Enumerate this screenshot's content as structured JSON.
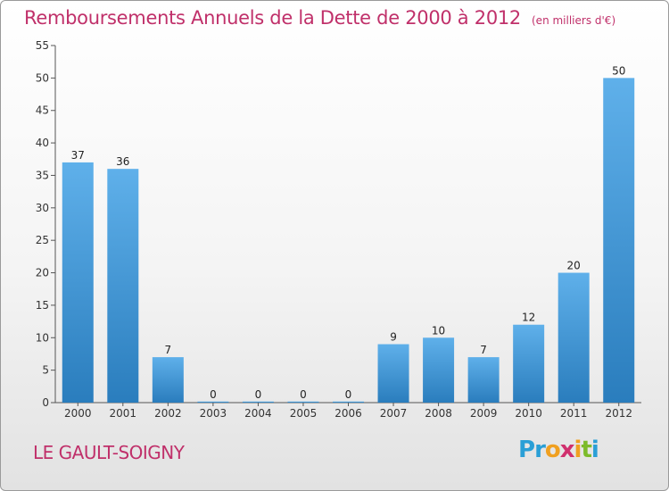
{
  "header": {
    "title": "Remboursements Annuels de la Dette de 2000 à 2012",
    "subtitle": "(en milliers d'€)"
  },
  "footer": {
    "commune": "LE GAULT-SOIGNY",
    "logo_text": "Proxiti",
    "logo_letters": [
      {
        "char": "P",
        "color": "#2a9fd6"
      },
      {
        "char": "r",
        "color": "#2a9fd6"
      },
      {
        "char": "o",
        "color": "#f0a020"
      },
      {
        "char": "x",
        "color": "#d0306e"
      },
      {
        "char": "i",
        "color": "#f0a020"
      },
      {
        "char": "t",
        "color": "#7cbb2a"
      },
      {
        "char": "i",
        "color": "#2a9fd6"
      }
    ]
  },
  "colors": {
    "bar_light": "#5fb0ea",
    "bar_dark": "#2a7dbd",
    "title": "#c0306a",
    "grid": "#cccccc"
  },
  "chart_data": {
    "type": "bar",
    "title": "Remboursements Annuels de la Dette de 2000 à 2012",
    "subtitle": "(en milliers d'€)",
    "xlabel": "",
    "ylabel": "",
    "categories": [
      "2000",
      "2001",
      "2002",
      "2003",
      "2004",
      "2005",
      "2006",
      "2007",
      "2008",
      "2009",
      "2010",
      "2011",
      "2012"
    ],
    "values": [
      37,
      36,
      7,
      0,
      0,
      0,
      0,
      9,
      10,
      7,
      12,
      20,
      50
    ],
    "ylim": [
      0,
      55
    ],
    "yticks": [
      0,
      5,
      10,
      15,
      20,
      25,
      30,
      35,
      40,
      45,
      50,
      55
    ],
    "grid": false,
    "data_labels": true
  }
}
